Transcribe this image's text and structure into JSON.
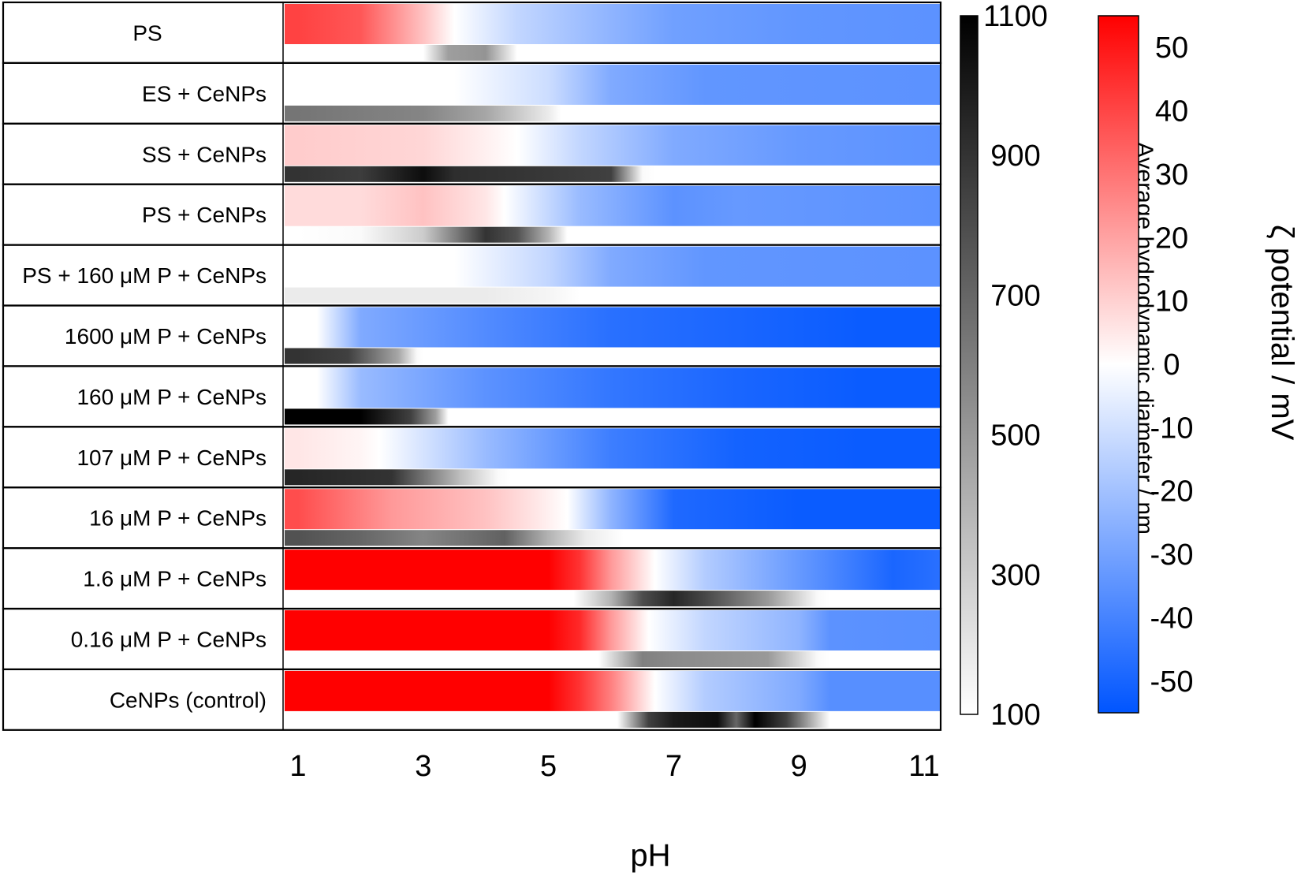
{
  "chart_data": {
    "type": "heatmap",
    "title": "",
    "xlabel": "pH",
    "x_ticks": [
      "1",
      "3",
      "5",
      "7",
      "9",
      "11"
    ],
    "xlim": [
      1,
      11.4
    ],
    "zeta_colorbar": {
      "label": "ζ potential / mV",
      "ticks": [
        "50",
        "40",
        "30",
        "20",
        "10",
        "0",
        "-10",
        "-20",
        "-30",
        "-40",
        "-50"
      ],
      "range": [
        -55,
        55
      ],
      "colors": {
        "positive": "#ff0000",
        "zero": "#ffffff",
        "negative": "#0055ff"
      }
    },
    "size_colorbar": {
      "label": "Average hydrodynamic diameter / nm",
      "ticks": [
        "1100",
        "900",
        "700",
        "500",
        "300",
        "100"
      ],
      "range": [
        100,
        1100
      ],
      "colors": {
        "low": "#ffffff",
        "high": "#000000"
      }
    },
    "rows": [
      {
        "label": "PS",
        "zeta": [
          [
            1,
            37
          ],
          [
            2,
            33
          ],
          [
            3,
            12
          ],
          [
            3.5,
            0
          ],
          [
            4.5,
            -12
          ],
          [
            6,
            -22
          ],
          [
            7,
            -28
          ],
          [
            9,
            -31
          ],
          [
            11.4,
            -32
          ]
        ],
        "size": [
          [
            1,
            100
          ],
          [
            3.0,
            100
          ],
          [
            3.4,
            480
          ],
          [
            4.0,
            520
          ],
          [
            4.5,
            100
          ],
          [
            11.4,
            100
          ]
        ]
      },
      {
        "label": "ES + CeNPs",
        "zeta": [
          [
            1,
            0
          ],
          [
            3.5,
            0
          ],
          [
            5,
            -10
          ],
          [
            6,
            -25
          ],
          [
            7.5,
            -31
          ],
          [
            11.4,
            -32
          ]
        ],
        "size": [
          [
            1,
            640
          ],
          [
            3,
            580
          ],
          [
            4,
            450
          ],
          [
            5,
            180
          ],
          [
            5.2,
            100
          ],
          [
            11.4,
            100
          ]
        ]
      },
      {
        "label": "SS + CeNPs",
        "zeta": [
          [
            1,
            10
          ],
          [
            3,
            8
          ],
          [
            4,
            3
          ],
          [
            4.5,
            0
          ],
          [
            5.5,
            -12
          ],
          [
            7,
            -25
          ],
          [
            9,
            -30
          ],
          [
            11.4,
            -32
          ]
        ],
        "size": [
          [
            1,
            900
          ],
          [
            2,
            860
          ],
          [
            3,
            1050
          ],
          [
            3.5,
            920
          ],
          [
            5,
            880
          ],
          [
            6,
            850
          ],
          [
            6.5,
            120
          ],
          [
            6.7,
            100
          ],
          [
            11.4,
            100
          ]
        ]
      },
      {
        "label": "PS + CeNPs",
        "zeta": [
          [
            1,
            7
          ],
          [
            2,
            7
          ],
          [
            3,
            12
          ],
          [
            4,
            5
          ],
          [
            4.3,
            0
          ],
          [
            5.5,
            -20
          ],
          [
            7,
            -32
          ],
          [
            8,
            -30
          ],
          [
            11.4,
            -32
          ]
        ],
        "size": [
          [
            1,
            100
          ],
          [
            2,
            120
          ],
          [
            3,
            300
          ],
          [
            4,
            900
          ],
          [
            4.5,
            780
          ],
          [
            5,
            400
          ],
          [
            5.3,
            100
          ],
          [
            11.4,
            100
          ]
        ]
      },
      {
        "label": "PS + 160 μM P + CeNPs",
        "zeta": [
          [
            1,
            0
          ],
          [
            3.5,
            0
          ],
          [
            5,
            -12
          ],
          [
            6,
            -25
          ],
          [
            7.5,
            -31
          ],
          [
            11.4,
            -32
          ]
        ],
        "size": [
          [
            1,
            180
          ],
          [
            4,
            180
          ],
          [
            5,
            140
          ],
          [
            5.5,
            100
          ],
          [
            11.4,
            100
          ]
        ]
      },
      {
        "label": "1600 μM P + CeNPs",
        "zeta": [
          [
            1,
            0
          ],
          [
            1.3,
            0
          ],
          [
            2,
            -25
          ],
          [
            4,
            -34
          ],
          [
            6,
            -42
          ],
          [
            8,
            -45
          ],
          [
            10,
            -48
          ],
          [
            11.4,
            -48
          ]
        ],
        "size": [
          [
            1,
            900
          ],
          [
            1.8,
            850
          ],
          [
            2.6,
            450
          ],
          [
            2.9,
            120
          ],
          [
            3.0,
            100
          ],
          [
            11.4,
            100
          ]
        ]
      },
      {
        "label": "160 μM P + CeNPs",
        "zeta": [
          [
            1,
            0
          ],
          [
            1.3,
            0
          ],
          [
            2,
            -20
          ],
          [
            4,
            -32
          ],
          [
            6,
            -40
          ],
          [
            8,
            -45
          ],
          [
            10,
            -48
          ],
          [
            11.4,
            -48
          ]
        ],
        "size": [
          [
            1,
            1100
          ],
          [
            2.0,
            1100
          ],
          [
            2.8,
            850
          ],
          [
            3.2,
            480
          ],
          [
            3.4,
            100
          ],
          [
            11.4,
            100
          ]
        ]
      },
      {
        "label": "107 μM P + CeNPs",
        "zeta": [
          [
            1,
            5
          ],
          [
            2,
            2
          ],
          [
            2.3,
            0
          ],
          [
            4,
            -20
          ],
          [
            6,
            -38
          ],
          [
            8,
            -46
          ],
          [
            10,
            -48
          ],
          [
            11.4,
            -48
          ]
        ],
        "size": [
          [
            1,
            950
          ],
          [
            2.5,
            900
          ],
          [
            3.0,
            650
          ],
          [
            3.6,
            350
          ],
          [
            4.2,
            120
          ],
          [
            4.4,
            100
          ],
          [
            11.4,
            100
          ]
        ]
      },
      {
        "label": "16 μM P + CeNPs",
        "zeta": [
          [
            1,
            35
          ],
          [
            2.5,
            20
          ],
          [
            4,
            12
          ],
          [
            4.8,
            5
          ],
          [
            5.3,
            0
          ],
          [
            6,
            -22
          ],
          [
            7,
            -44
          ],
          [
            9,
            -48
          ],
          [
            11.4,
            -48
          ]
        ],
        "size": [
          [
            1,
            780
          ],
          [
            2,
            700
          ],
          [
            3,
            580
          ],
          [
            4.3,
            720
          ],
          [
            5,
            400
          ],
          [
            5.6,
            180
          ],
          [
            6.2,
            100
          ],
          [
            11.4,
            100
          ]
        ]
      },
      {
        "label": "1.6 μM P + CeNPs",
        "zeta": [
          [
            1,
            55
          ],
          [
            5,
            55
          ],
          [
            5.5,
            40
          ],
          [
            6,
            20
          ],
          [
            6.7,
            0
          ],
          [
            7.5,
            -15
          ],
          [
            9,
            -30
          ],
          [
            10.5,
            -45
          ],
          [
            11.4,
            -42
          ]
        ],
        "size": [
          [
            1,
            100
          ],
          [
            5.4,
            100
          ],
          [
            6,
            400
          ],
          [
            6.5,
            800
          ],
          [
            7,
            950
          ],
          [
            7.5,
            820
          ],
          [
            8.5,
            500
          ],
          [
            9.3,
            120
          ],
          [
            9.5,
            100
          ],
          [
            11.4,
            100
          ]
        ]
      },
      {
        "label": "0.16 μM P + CeNPs",
        "zeta": [
          [
            1,
            55
          ],
          [
            5,
            55
          ],
          [
            5.5,
            42
          ],
          [
            6,
            20
          ],
          [
            6.6,
            0
          ],
          [
            7.5,
            -12
          ],
          [
            9,
            -22
          ],
          [
            9.5,
            -32
          ],
          [
            11.4,
            -33
          ]
        ],
        "size": [
          [
            1,
            100
          ],
          [
            5.8,
            100
          ],
          [
            6.5,
            600
          ],
          [
            7,
            560
          ],
          [
            8.5,
            500
          ],
          [
            9.3,
            120
          ],
          [
            9.5,
            100
          ],
          [
            11.4,
            100
          ]
        ]
      },
      {
        "label": "CeNPs (control)",
        "zeta": [
          [
            1,
            55
          ],
          [
            5,
            55
          ],
          [
            5.5,
            40
          ],
          [
            6,
            25
          ],
          [
            6.7,
            0
          ],
          [
            7.5,
            -15
          ],
          [
            9,
            -25
          ],
          [
            9.5,
            -33
          ],
          [
            11.4,
            -33
          ]
        ],
        "size": [
          [
            1,
            100
          ],
          [
            6.1,
            100
          ],
          [
            6.6,
            850
          ],
          [
            7,
            1000
          ],
          [
            7.7,
            1050
          ],
          [
            8,
            700
          ],
          [
            8.3,
            1100
          ],
          [
            8.8,
            850
          ],
          [
            9.3,
            300
          ],
          [
            9.5,
            100
          ],
          [
            11.4,
            100
          ]
        ]
      }
    ]
  }
}
